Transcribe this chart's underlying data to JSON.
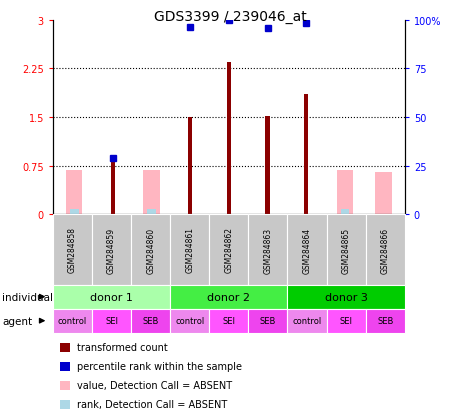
{
  "title": "GDS3399 / 239046_at",
  "samples": [
    "GSM284858",
    "GSM284859",
    "GSM284860",
    "GSM284861",
    "GSM284862",
    "GSM284863",
    "GSM284864",
    "GSM284865",
    "GSM284866"
  ],
  "red_bars": [
    0,
    0.9,
    0,
    1.5,
    2.35,
    1.52,
    1.85,
    0,
    0
  ],
  "pink_bars": [
    0.68,
    0,
    0.68,
    0,
    0,
    0,
    0,
    0.68,
    0.65
  ],
  "blue_squares_left_scale": [
    null,
    0.87,
    null,
    2.88,
    3.0,
    2.87,
    2.95,
    null,
    null
  ],
  "light_blue_bars": [
    0.08,
    null,
    0.08,
    null,
    null,
    null,
    null,
    0.08,
    null
  ],
  "ylim": [
    0,
    3.0
  ],
  "yticks_left": [
    0,
    0.75,
    1.5,
    2.25,
    3.0
  ],
  "ytick_labels_left": [
    "0",
    "0.75",
    "1.5",
    "2.25",
    "3"
  ],
  "yticks_right": [
    0,
    25,
    50,
    75,
    100
  ],
  "ytick_labels_right": [
    "0",
    "25",
    "50",
    "75",
    "100%"
  ],
  "dotted_lines": [
    0.75,
    1.5,
    2.25
  ],
  "donors": [
    {
      "label": "donor 1",
      "start": 0,
      "end": 3,
      "color": "#AAFFAA"
    },
    {
      "label": "donor 2",
      "start": 3,
      "end": 6,
      "color": "#44EE44"
    },
    {
      "label": "donor 3",
      "start": 6,
      "end": 9,
      "color": "#00CC00"
    }
  ],
  "agents": [
    "control",
    "SEI",
    "SEB",
    "control",
    "SEI",
    "SEB",
    "control",
    "SEI",
    "SEB"
  ],
  "agent_colors": [
    "#EE88EE",
    "#FF55FF",
    "#EE44EE",
    "#EE88EE",
    "#FF55FF",
    "#EE44EE",
    "#EE88EE",
    "#FF55FF",
    "#EE44EE"
  ],
  "individual_label": "individual",
  "agent_label": "agent",
  "legend_labels": [
    "transformed count",
    "percentile rank within the sample",
    "value, Detection Call = ABSENT",
    "rank, Detection Call = ABSENT"
  ],
  "legend_colors": [
    "#8B0000",
    "#0000CC",
    "#FFB6C1",
    "#ADD8E6"
  ],
  "bar_width": 0.5,
  "sample_box_color": "#C8C8C8"
}
